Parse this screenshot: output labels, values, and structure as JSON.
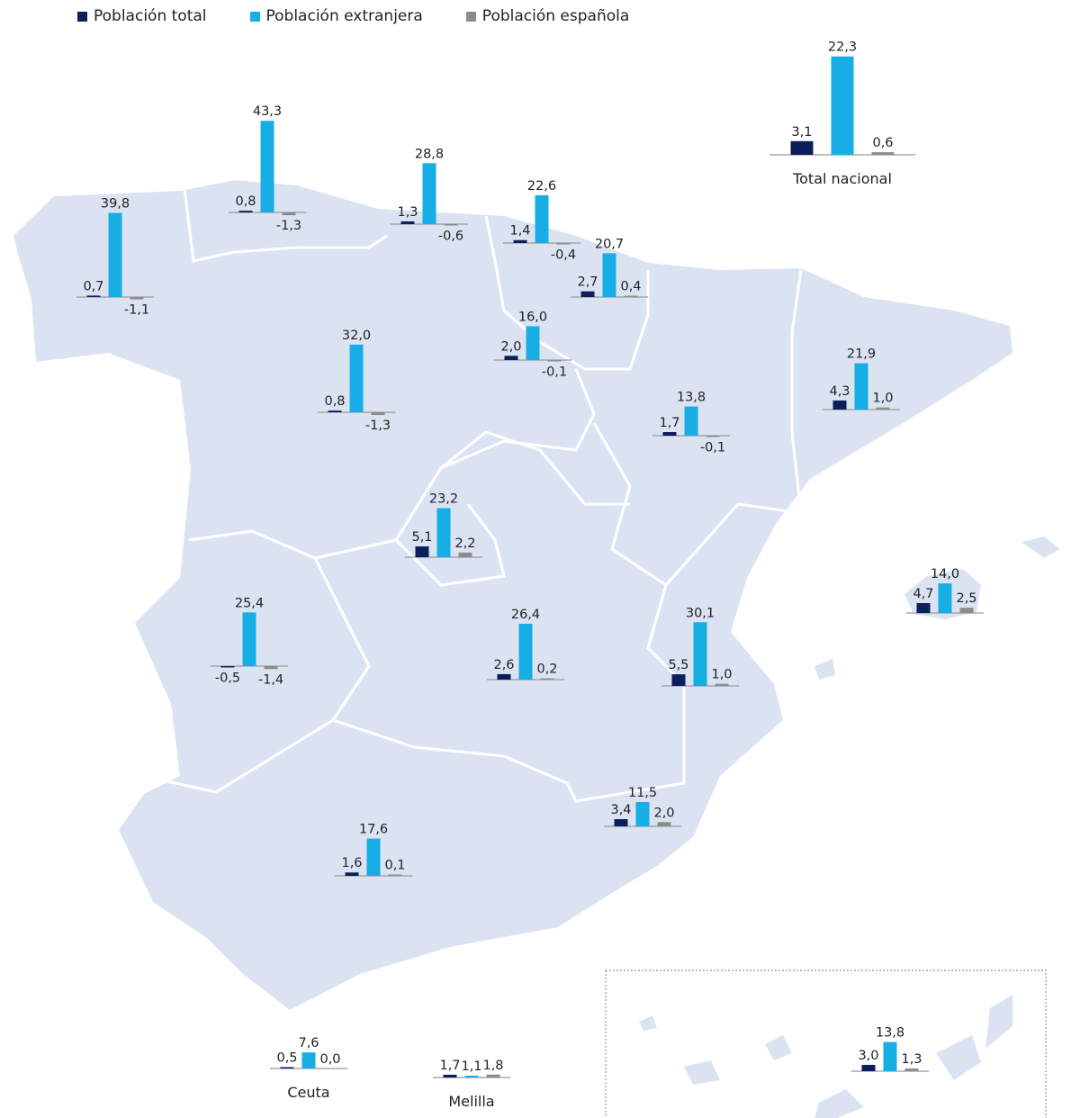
{
  "legend": {
    "total": "Población total",
    "extranjera": "Población extranjera",
    "espanola": "Población española"
  },
  "colors": {
    "total": "#0b1f5c",
    "extranjera": "#17aee6",
    "espanola": "#8c8c8c",
    "land": "#dbe3f2",
    "border": "#ffffff"
  },
  "chart_data": {
    "type": "bar",
    "series_names": [
      "Población total",
      "Población extranjera",
      "Población española"
    ],
    "groups": [
      {
        "label": "",
        "values": [
          0.7,
          39.8,
          -1.1
        ]
      },
      {
        "label": "",
        "values": [
          0.8,
          43.3,
          -1.3
        ]
      },
      {
        "label": "",
        "values": [
          1.3,
          28.8,
          -0.6
        ]
      },
      {
        "label": "",
        "values": [
          1.4,
          22.6,
          -0.4
        ]
      },
      {
        "label": "",
        "values": [
          2.7,
          20.7,
          0.4
        ]
      },
      {
        "label": "",
        "values": [
          2.0,
          16.0,
          -0.1
        ]
      },
      {
        "label": "",
        "values": [
          0.8,
          32.0,
          -1.3
        ]
      },
      {
        "label": "",
        "values": [
          1.7,
          13.8,
          -0.1
        ]
      },
      {
        "label": "",
        "values": [
          4.3,
          21.9,
          1.0
        ]
      },
      {
        "label": "",
        "values": [
          5.1,
          23.2,
          2.2
        ]
      },
      {
        "label": "",
        "values": [
          4.7,
          14.0,
          2.5
        ]
      },
      {
        "label": "",
        "values": [
          -0.5,
          25.4,
          -1.4
        ]
      },
      {
        "label": "",
        "values": [
          2.6,
          26.4,
          0.2
        ]
      },
      {
        "label": "",
        "values": [
          5.5,
          30.1,
          1.0
        ]
      },
      {
        "label": "",
        "values": [
          3.4,
          11.5,
          2.0
        ]
      },
      {
        "label": "",
        "values": [
          1.6,
          17.6,
          0.1
        ]
      },
      {
        "label": "",
        "values": [
          3.0,
          13.8,
          1.3
        ]
      },
      {
        "label": "Ceuta",
        "values": [
          0.5,
          7.6,
          0.0
        ]
      },
      {
        "label": "Melilla",
        "values": [
          1.7,
          1.1,
          1.8
        ]
      },
      {
        "label": "Total nacional",
        "values": [
          3.1,
          22.3,
          0.6
        ]
      }
    ]
  }
}
